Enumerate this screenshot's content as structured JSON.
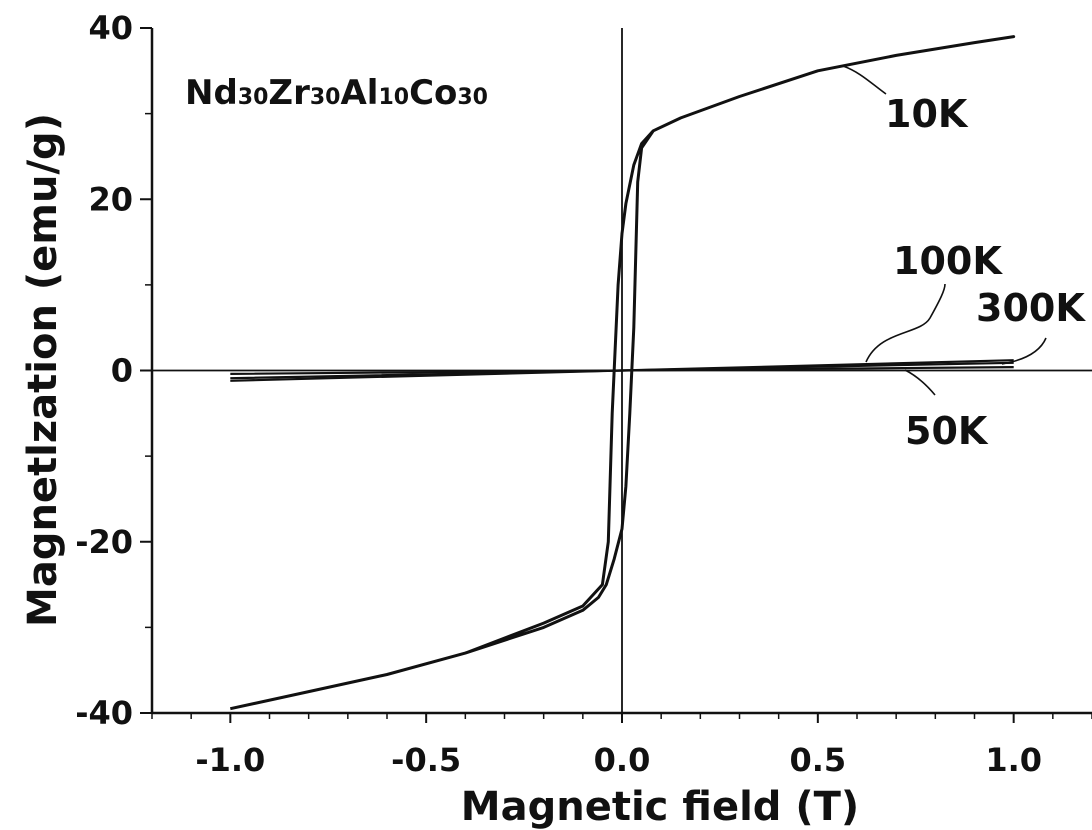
{
  "chart_data": {
    "type": "line",
    "title": "",
    "annotation": {
      "composition": [
        {
          "text": "Nd",
          "sub": "30"
        },
        {
          "text": "Zr",
          "sub": "30"
        },
        {
          "text": "Al",
          "sub": "10"
        },
        {
          "text": "Co",
          "sub": "30"
        }
      ]
    },
    "xlabel": "Magnetic field (T)",
    "ylabel": "Magnetlzation (emu/g)",
    "xlim": [
      -1.2,
      1.2
    ],
    "ylim": [
      -40,
      40
    ],
    "xticks": [
      -1.0,
      -0.5,
      0.0,
      0.5,
      1.0
    ],
    "xtick_labels": [
      "-1.0",
      "-0.5",
      "0.0",
      "0.5",
      "1.0"
    ],
    "yticks": [
      -40,
      -20,
      0,
      20,
      40
    ],
    "ytick_labels": [
      "-40",
      "-20",
      "0",
      "20",
      "40"
    ],
    "grid": false,
    "zero_lines": true,
    "series": [
      {
        "name": "10K",
        "color": "#111111",
        "x": [
          -1.0,
          -0.8,
          -0.6,
          -0.4,
          -0.2,
          -0.1,
          -0.05,
          -0.035,
          -0.025,
          -0.01,
          0.0,
          0.01,
          0.03,
          0.05,
          0.08,
          0.15,
          0.3,
          0.5,
          0.7,
          0.9,
          1.0,
          0.9,
          0.7,
          0.5,
          0.3,
          0.15,
          0.08,
          0.05,
          0.04,
          0.03,
          0.02,
          0.01,
          0.0,
          -0.02,
          -0.04,
          -0.06,
          -0.1,
          -0.2,
          -0.4,
          -0.6,
          -0.8,
          -1.0
        ],
        "y": [
          -39.5,
          -37.5,
          -35.5,
          -33.0,
          -29.5,
          -27.5,
          -25.0,
          -20.0,
          -5.0,
          10.0,
          16.0,
          19.5,
          24.0,
          26.5,
          28.0,
          29.5,
          32.0,
          35.0,
          36.8,
          38.3,
          39.0,
          38.3,
          36.8,
          35.0,
          32.0,
          29.5,
          28.0,
          26.0,
          22.0,
          5.0,
          -5.0,
          -13.5,
          -18.5,
          -22.0,
          -25.0,
          -26.5,
          -28.0,
          -30.0,
          -33.0,
          -35.5,
          -37.5,
          -39.5
        ]
      },
      {
        "name": "50K",
        "color": "#111111",
        "x": [
          -1.0,
          0.0,
          1.0
        ],
        "y": [
          -0.4,
          0.0,
          0.4
        ]
      },
      {
        "name": "100K",
        "color": "#111111",
        "x": [
          -1.0,
          0.0,
          1.0
        ],
        "y": [
          -0.9,
          0.0,
          0.9
        ]
      },
      {
        "name": "300K",
        "color": "#111111",
        "x": [
          -1.0,
          0.0,
          1.0
        ],
        "y": [
          -1.2,
          0.0,
          1.2
        ]
      }
    ],
    "series_labels": [
      {
        "name": "10K",
        "text": "10K"
      },
      {
        "name": "100K",
        "text": "100K"
      },
      {
        "name": "300K",
        "text": "300K"
      },
      {
        "name": "50K",
        "text": "50K"
      }
    ]
  }
}
